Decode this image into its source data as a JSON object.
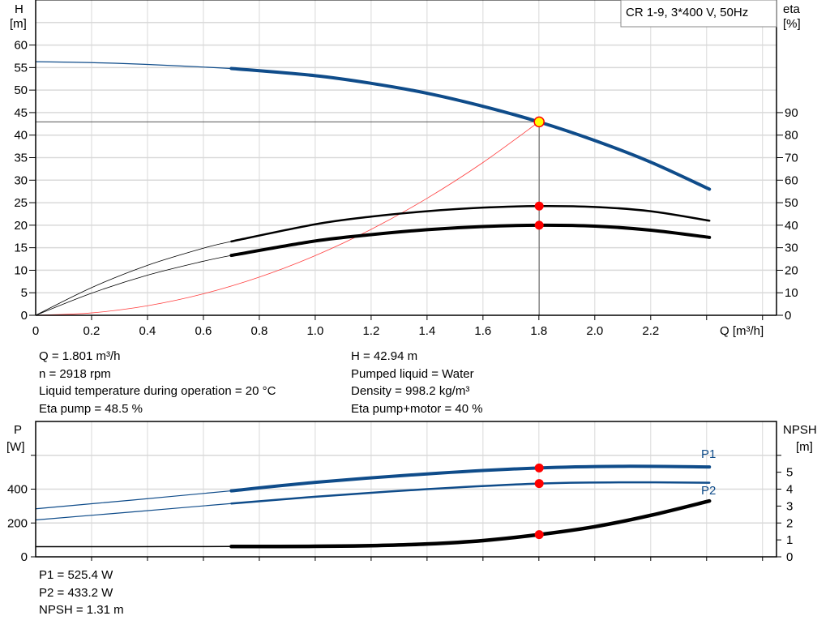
{
  "chart_data": [
    {
      "type": "line",
      "legend_box": "CR 1-9, 3*400 V, 50Hz",
      "xlabel": "Q [m³/h]",
      "ylabel_left": [
        "H",
        "[m]"
      ],
      "ylabel_right": [
        "eta",
        "[%]"
      ],
      "xlim": [
        0,
        2.65
      ],
      "ylim_left": [
        0,
        70
      ],
      "ylim_right": [
        0,
        140
      ],
      "x_ticks": [
        "0",
        "0.2",
        "0.4",
        "0.6",
        "0.8",
        "1.0",
        "1.2",
        "1.4",
        "1.6",
        "1.8",
        "2.0",
        "2.2"
      ],
      "y_ticks_left": [
        "0",
        "5",
        "10",
        "15",
        "20",
        "25",
        "30",
        "35",
        "40",
        "45",
        "50",
        "55",
        "60"
      ],
      "y_ticks_right": [
        "0",
        "10",
        "20",
        "30",
        "40",
        "50",
        "60",
        "70",
        "80",
        "90"
      ],
      "grid": true,
      "operating_point": {
        "q": 1.801,
        "h": 42.94,
        "eta_pump": 48.5,
        "eta_total": 40
      },
      "series": [
        {
          "key": "H",
          "axis": "left",
          "color": "#0f4c8a",
          "thick_from": 0.7,
          "q": [
            0,
            0.2,
            0.4,
            0.7,
            1.0,
            1.2,
            1.4,
            1.6,
            1.8,
            2.0,
            2.2,
            2.41
          ],
          "values": [
            56.3,
            56.1,
            55.7,
            54.8,
            53.2,
            51.5,
            49.3,
            46.4,
            42.94,
            38.8,
            34.0,
            28.0
          ]
        },
        {
          "key": "eta-pump",
          "axis": "right",
          "color": "#000000",
          "thick_from": 0.7,
          "bold": false,
          "q": [
            0,
            0.2,
            0.4,
            0.6,
            0.7,
            1.0,
            1.2,
            1.4,
            1.6,
            1.8,
            2.0,
            2.2,
            2.41
          ],
          "values": [
            0,
            12.3,
            22.2,
            29.8,
            32.8,
            40.4,
            43.8,
            46.2,
            47.8,
            48.5,
            48.1,
            46.2,
            42
          ]
        },
        {
          "key": "eta-total",
          "axis": "right",
          "color": "#000000",
          "thick_from": 0.7,
          "bold": true,
          "q": [
            0,
            0.2,
            0.4,
            0.6,
            0.7,
            1.0,
            1.2,
            1.4,
            1.6,
            1.8,
            2.0,
            2.2,
            2.41
          ],
          "values": [
            0,
            9.8,
            17.8,
            24,
            26.6,
            33,
            35.8,
            38,
            39.4,
            40,
            39.6,
            37.8,
            34.6
          ]
        },
        {
          "key": "system-curve",
          "axis": "left",
          "color": "#ff4040",
          "q": [
            0,
            0.2,
            0.4,
            0.6,
            0.8,
            1.0,
            1.2,
            1.4,
            1.6,
            1.8
          ],
          "values": [
            0,
            0.53,
            2.12,
            4.77,
            8.48,
            13.25,
            19.08,
            25.97,
            33.92,
            42.94
          ]
        }
      ]
    },
    {
      "type": "line",
      "xlim": [
        0,
        2.65
      ],
      "ylabel_left": [
        "P",
        "[W]"
      ],
      "ylabel_right": [
        "NPSH",
        "[m]"
      ],
      "ylim_left": [
        0,
        800
      ],
      "ylim_right": [
        0,
        8
      ],
      "y_ticks_left": [
        "0",
        "200",
        "400"
      ],
      "y_ticks_right": [
        "0",
        "1",
        "2",
        "3",
        "4",
        "5"
      ],
      "grid": true,
      "series": [
        {
          "name": "P1",
          "axis": "left",
          "color": "#0f4c8a",
          "thick_from": 0.7,
          "bold": true,
          "q": [
            0,
            0.35,
            0.7,
            1.0,
            1.4,
            1.8,
            2.1,
            2.41
          ],
          "values": [
            284,
            336,
            390,
            440,
            490,
            525.4,
            535,
            531
          ]
        },
        {
          "name": "P2",
          "axis": "left",
          "color": "#0f4c8a",
          "thick_from": 0.7,
          "bold": false,
          "q": [
            0,
            0.35,
            0.7,
            1.0,
            1.4,
            1.8,
            2.1,
            2.41
          ],
          "values": [
            218,
            266,
            315,
            355,
            400,
            433.2,
            440,
            438
          ]
        },
        {
          "key": "NPSH",
          "axis": "right",
          "color": "#000000",
          "thick_from": 0.7,
          "bold": true,
          "q": [
            0,
            0.35,
            0.7,
            1.0,
            1.2,
            1.4,
            1.6,
            1.8,
            2.0,
            2.2,
            2.41
          ],
          "values": [
            0.6,
            0.6,
            0.61,
            0.62,
            0.66,
            0.76,
            0.96,
            1.31,
            1.78,
            2.45,
            3.3
          ]
        }
      ]
    }
  ],
  "results_top": {
    "left": [
      "Q = 1.801 m³/h",
      "n = 2918 rpm",
      "Liquid temperature during operation = 20 °C",
      "Eta pump = 48.5 %"
    ],
    "right": [
      "H = 42.94 m",
      "Pumped liquid = Water",
      "Density = 998.2 kg/m³",
      "Eta pump+motor = 40 %"
    ]
  },
  "results_bottom": [
    "P1 = 525.4 W",
    "P2 = 433.2 W",
    "NPSH = 1.31 m"
  ],
  "colors": {
    "grid": "#d9d9d9",
    "marker": "#ff0000",
    "op_marker": "#ffff00",
    "curve_blue": "#0f4c8a"
  }
}
